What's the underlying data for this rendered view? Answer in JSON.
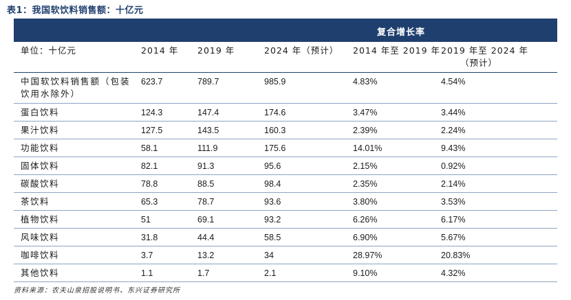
{
  "title": "表1：我国软饮料销售额：十亿元",
  "band_label": "复合增长率",
  "headers": {
    "unit": "单位：十亿元",
    "y2014": "2014 年",
    "y2019": "2019 年",
    "y2024": "2024 年（预计）",
    "cagr1": "2014 年至 2019 年",
    "cagr2_line1": "2019 年至 2024 年",
    "cagr2_line2": "（预计）"
  },
  "rows": [
    {
      "name": "中国软饮料销售额（包装饮用水除外）",
      "v2014": "623.7",
      "v2019": "789.7",
      "v2024": "985.9",
      "cagr1": "4.83%",
      "cagr2": "4.54%"
    },
    {
      "name": "蛋白饮料",
      "v2014": "124.3",
      "v2019": "147.4",
      "v2024": "174.6",
      "cagr1": "3.47%",
      "cagr2": "3.44%"
    },
    {
      "name": "果汁饮料",
      "v2014": "127.5",
      "v2019": "143.5",
      "v2024": "160.3",
      "cagr1": "2.39%",
      "cagr2": "2.24%"
    },
    {
      "name": "功能饮料",
      "v2014": "58.1",
      "v2019": "111.9",
      "v2024": "175.6",
      "cagr1": "14.01%",
      "cagr2": "9.43%"
    },
    {
      "name": "固体饮料",
      "v2014": "82.1",
      "v2019": "91.3",
      "v2024": "95.6",
      "cagr1": "2.15%",
      "cagr2": "0.92%"
    },
    {
      "name": "碳酸饮料",
      "v2014": "78.8",
      "v2019": "88.5",
      "v2024": "98.4",
      "cagr1": "2.35%",
      "cagr2": "2.14%"
    },
    {
      "name": "茶饮料",
      "v2014": "65.3",
      "v2019": "78.7",
      "v2024": "93.6",
      "cagr1": "3.80%",
      "cagr2": "3.53%"
    },
    {
      "name": "植物饮料",
      "v2014": "51",
      "v2019": "69.1",
      "v2024": "93.2",
      "cagr1": "6.26%",
      "cagr2": "6.17%"
    },
    {
      "name": "风味饮料",
      "v2014": "31.8",
      "v2019": "44.4",
      "v2024": "58.5",
      "cagr1": "6.90%",
      "cagr2": "5.67%"
    },
    {
      "name": "咖啡饮料",
      "v2014": "3.7",
      "v2019": "13.2",
      "v2024": "34",
      "cagr1": "28.97%",
      "cagr2": "20.83%"
    },
    {
      "name": "其他饮料",
      "v2014": "1.1",
      "v2019": "1.7",
      "v2024": "2.1",
      "cagr1": "9.10%",
      "cagr2": "4.32%"
    }
  ],
  "source": "资料来源：农夫山泉招股说明书、东兴证券研究所",
  "colors": {
    "header_band": "#1f3f6e",
    "title": "#1f3f6e",
    "row_rule": "#8aa3c2"
  }
}
